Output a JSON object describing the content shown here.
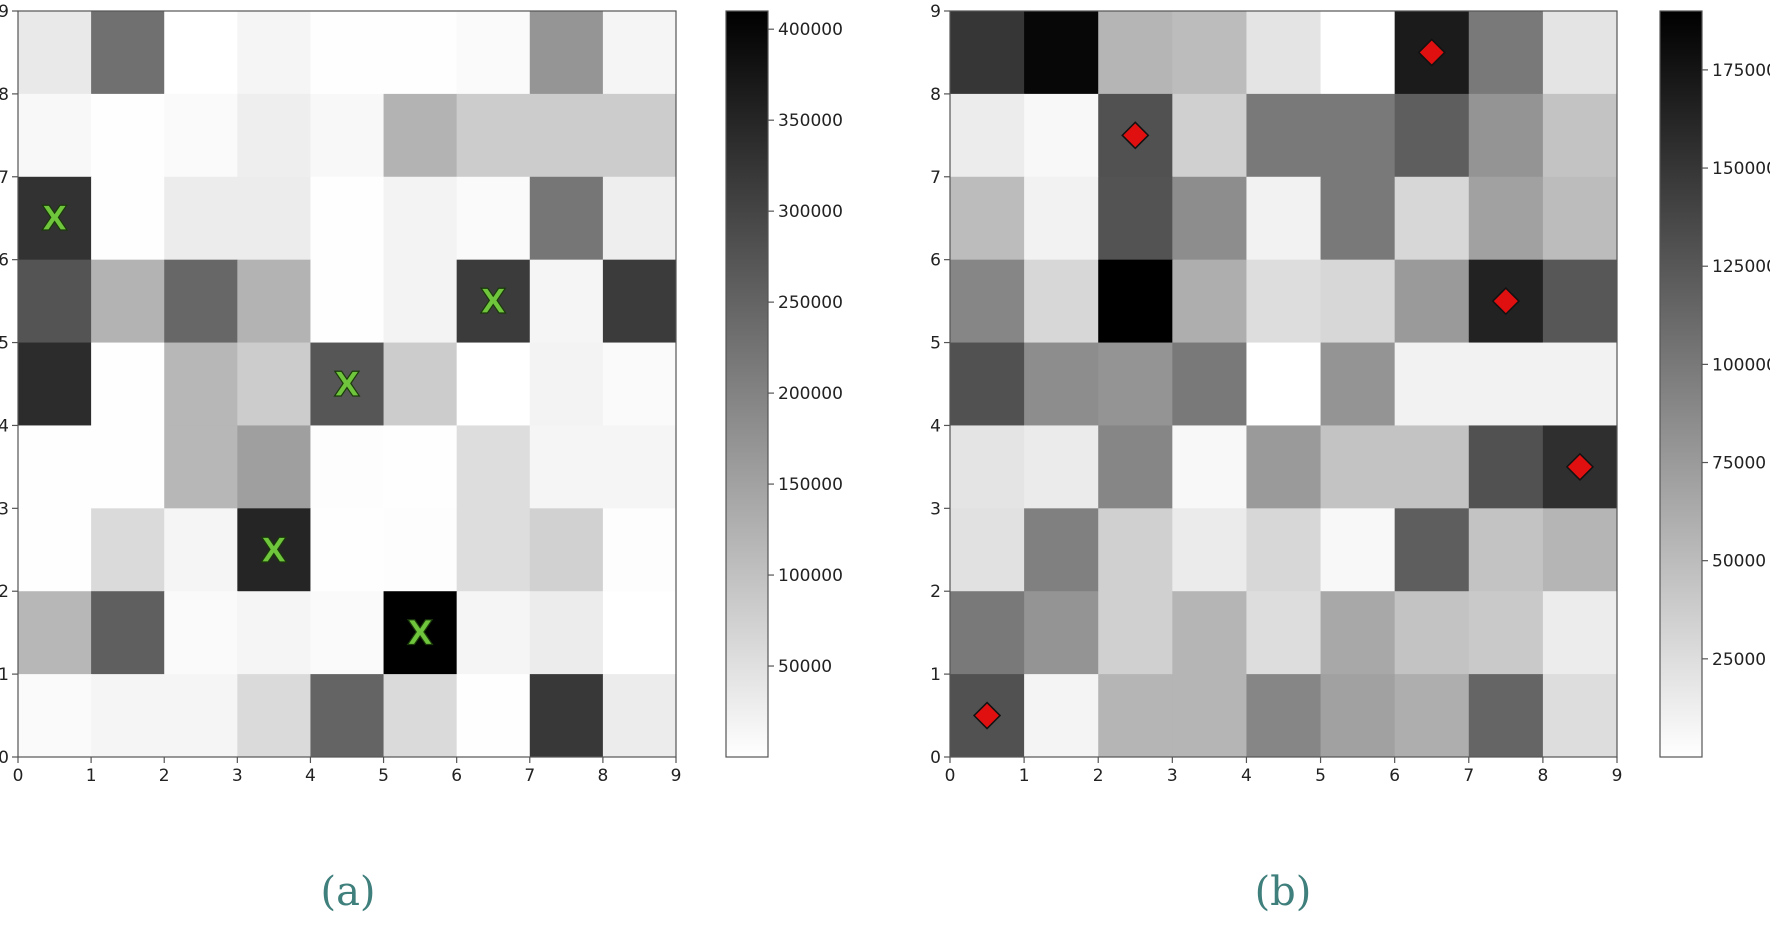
{
  "chart_data": [
    {
      "type": "heatmap",
      "panel_label": "(a)",
      "x_ticks": [
        0,
        1,
        2,
        3,
        4,
        5,
        6,
        7,
        8,
        9
      ],
      "y_ticks": [
        0,
        1,
        2,
        3,
        4,
        5,
        6,
        7,
        8,
        9
      ],
      "xlim": [
        0,
        9
      ],
      "ylim": [
        0,
        9
      ],
      "colormap": "Greys",
      "colorbar": {
        "min": 0,
        "max": 410000,
        "ticks": [
          50000,
          100000,
          150000,
          200000,
          250000,
          300000,
          350000,
          400000
        ]
      },
      "marker": {
        "shape": "x",
        "label": "X",
        "color": "#6fc53c"
      },
      "markers": [
        [
          0.5,
          6.5
        ],
        [
          6.5,
          5.5
        ],
        [
          4.5,
          4.5
        ],
        [
          3.5,
          2.5
        ],
        [
          5.5,
          1.5
        ]
      ],
      "rows_top_to_bottom": [
        [
          36000,
          230000,
          0,
          16000,
          2000,
          2000,
          8000,
          170000,
          16000
        ],
        [
          12000,
          2000,
          8000,
          28000,
          12000,
          122000,
          82000,
          82000,
          82000
        ],
        [
          330000,
          2000,
          30000,
          30000,
          2000,
          20000,
          8000,
          220000,
          28000
        ],
        [
          275000,
          122000,
          245000,
          122000,
          2000,
          20000,
          315000,
          16000,
          315000
        ],
        [
          340000,
          2000,
          115000,
          82000,
          272000,
          82000,
          0,
          20000,
          8000
        ],
        [
          2000,
          2000,
          115000,
          155000,
          4000,
          2000,
          55000,
          16000,
          16000
        ],
        [
          2000,
          60000,
          16000,
          350000,
          2000,
          4000,
          55000,
          74000,
          4000
        ],
        [
          115000,
          258000,
          8000,
          16000,
          8000,
          410000,
          16000,
          30000,
          0
        ],
        [
          8000,
          16000,
          16000,
          60000,
          250000,
          60000,
          2000,
          320000,
          30000
        ]
      ]
    },
    {
      "type": "heatmap",
      "panel_label": "(b)",
      "x_ticks": [
        0,
        1,
        2,
        3,
        4,
        5,
        6,
        7,
        8,
        9
      ],
      "y_ticks": [
        0,
        1,
        2,
        3,
        4,
        5,
        6,
        7,
        8,
        9
      ],
      "xlim": [
        0,
        9
      ],
      "ylim": [
        0,
        9
      ],
      "colormap": "Greys",
      "colorbar": {
        "min": 0,
        "max": 190000,
        "ticks": [
          25000,
          50000,
          75000,
          100000,
          125000,
          150000,
          175000
        ]
      },
      "marker": {
        "shape": "diamond",
        "color": "#e01010"
      },
      "markers": [
        [
          6.5,
          8.5
        ],
        [
          2.5,
          7.5
        ],
        [
          7.5,
          5.5
        ],
        [
          8.5,
          3.5
        ],
        [
          0.5,
          0.5
        ]
      ],
      "rows_top_to_bottom": [
        [
          150000,
          185000,
          55000,
          50000,
          20000,
          0,
          170000,
          100000,
          20000
        ],
        [
          14000,
          5000,
          130000,
          35000,
          100000,
          100000,
          120000,
          80000,
          45000
        ],
        [
          50000,
          10000,
          128000,
          85000,
          10000,
          100000,
          30000,
          70000,
          50000
        ],
        [
          90000,
          30000,
          190000,
          60000,
          25000,
          30000,
          75000,
          165000,
          125000
        ],
        [
          130000,
          85000,
          80000,
          100000,
          0,
          80000,
          10000,
          10000,
          10000
        ],
        [
          20000,
          15000,
          90000,
          5000,
          75000,
          45000,
          45000,
          130000,
          155000
        ],
        [
          22000,
          95000,
          35000,
          15000,
          30000,
          5000,
          120000,
          45000,
          55000
        ],
        [
          100000,
          80000,
          35000,
          55000,
          25000,
          65000,
          45000,
          40000,
          14000
        ],
        [
          130000,
          8000,
          55000,
          55000,
          90000,
          70000,
          60000,
          115000,
          25000
        ]
      ]
    }
  ]
}
